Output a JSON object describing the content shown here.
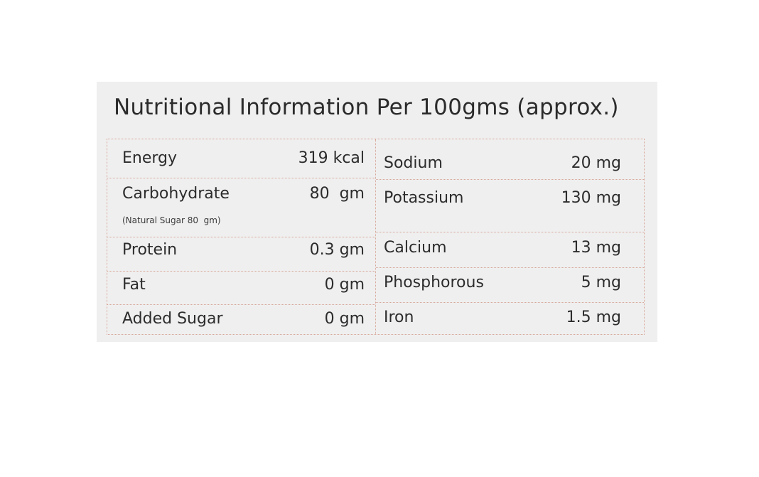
{
  "title": "Nutritional Information Per 100gms (approx.)",
  "left_rows": [
    {
      "label": "Energy",
      "value": "319 kcal"
    },
    {
      "label": "Carbohydrate",
      "value": "80  gm",
      "note": "(Natural Sugar 80  gm)"
    },
    {
      "label": "Protein",
      "value": "0.3 gm"
    },
    {
      "label": "Fat",
      "value": "0 gm"
    },
    {
      "label": "Added Sugar",
      "value": "0 gm"
    }
  ],
  "right_rows": [
    {
      "label": "Sodium",
      "value": "20 mg"
    },
    {
      "label": "Potassium",
      "value": "130 mg"
    },
    {
      "label": "Calcium",
      "value": "13 mg"
    },
    {
      "label": "Phosphorous",
      "value": "5 mg"
    },
    {
      "label": "Iron",
      "value": "1.5 mg"
    }
  ],
  "colors": {
    "panel_background": "#efefef",
    "grid_line": "#d7a79a",
    "text": "#2c2c2c"
  }
}
